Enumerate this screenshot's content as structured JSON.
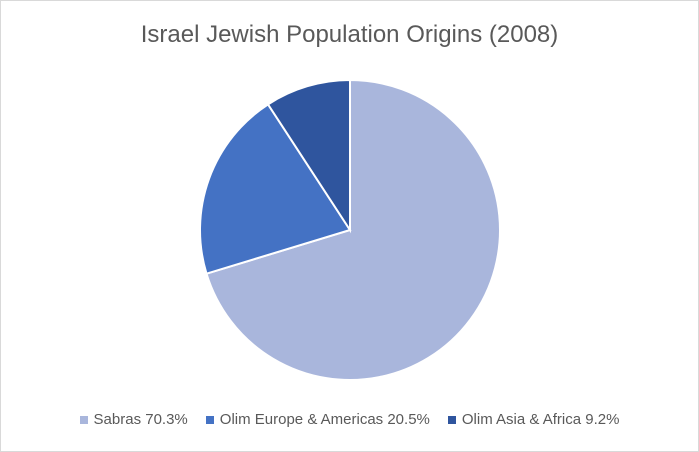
{
  "chart_data": {
    "type": "pie",
    "title": "Israel Jewish Population Origins (2008)",
    "slices": [
      {
        "label": "Sabras 70.3%",
        "value": 70.3,
        "color": "#a9b6dc"
      },
      {
        "label": "Olim Europe & Americas 20.5%",
        "value": 20.5,
        "color": "#4472c4"
      },
      {
        "label": "Olim Asia & Africa 9.2%",
        "value": 9.2,
        "color": "#2f559e"
      }
    ],
    "legend_position": "bottom"
  }
}
